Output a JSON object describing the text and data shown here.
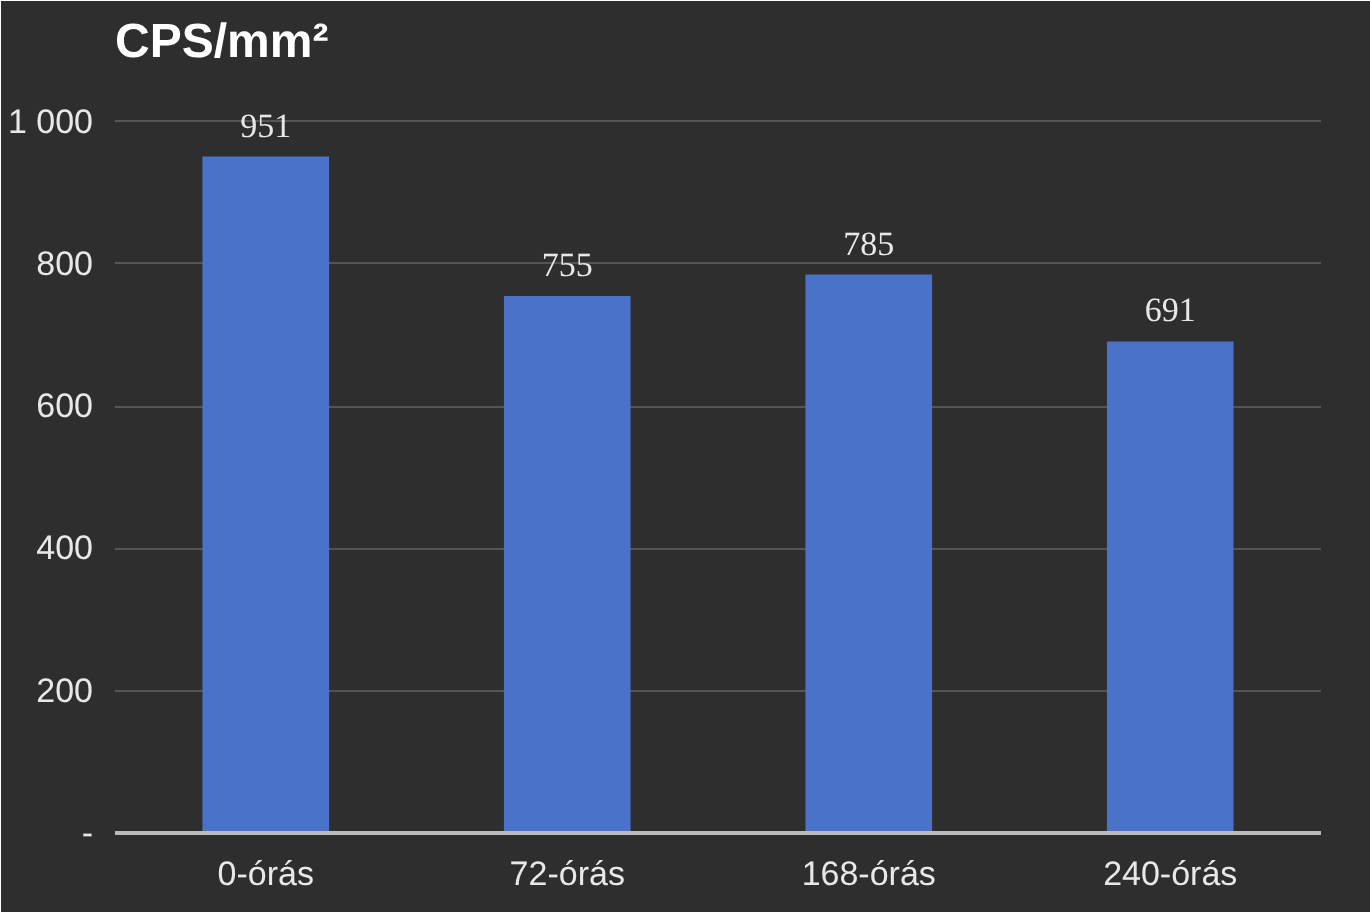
{
  "chart_data": {
    "type": "bar",
    "title": "CPS/mm²",
    "categories": [
      "0-órás",
      "72-órás",
      "168-órás",
      "240-órás"
    ],
    "values": [
      951,
      755,
      785,
      691
    ],
    "color": "#4a72c8",
    "ylim": [
      0,
      1060
    ],
    "yticks": [
      {
        "value": 0,
        "label": "-"
      },
      200,
      400,
      600,
      800,
      {
        "value": 1000,
        "label": "1 000"
      }
    ],
    "grid": "y",
    "data_labels": true
  }
}
